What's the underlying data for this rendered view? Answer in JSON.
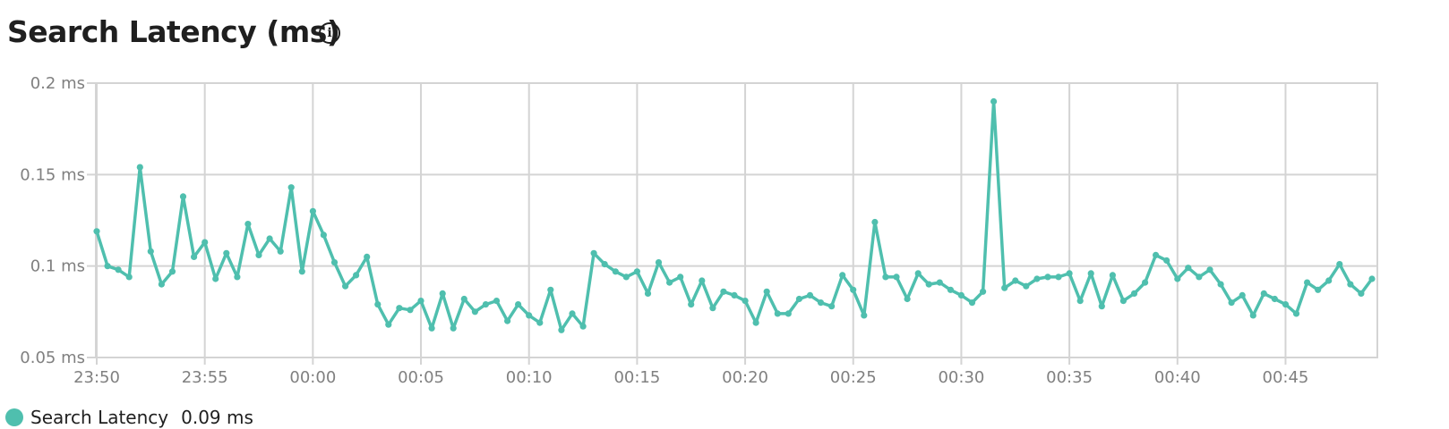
{
  "header": {
    "title": "Search Latency (ms)",
    "info_icon_glyph": "i",
    "info_icon": "info-circle-icon"
  },
  "legend": {
    "series_name": "Search Latency",
    "current_value": "0.09 ms",
    "color": "#4fbfae"
  },
  "chart_data": {
    "type": "line",
    "title": "Search Latency (ms)",
    "xlabel": "",
    "ylabel": "",
    "grid": true,
    "legend_position": "bottom-left",
    "ylim": [
      0.05,
      0.2
    ],
    "yticks": [
      "0.05 ms",
      "0.1 ms",
      "0.15 ms",
      "0.2 ms"
    ],
    "ytick_values": [
      0.05,
      0.1,
      0.15,
      0.2
    ],
    "xlim": [
      "23:50",
      "00:49"
    ],
    "xticks": [
      "23:50",
      "23:55",
      "00:00",
      "00:05",
      "00:10",
      "00:15",
      "00:20",
      "00:25",
      "00:30",
      "00:35",
      "00:40",
      "00:45"
    ],
    "x_start": "23:50",
    "x_step_seconds": 30,
    "series": [
      {
        "name": "Search Latency",
        "color": "#4fbfae",
        "values": [
          0.119,
          0.1,
          0.098,
          0.094,
          0.154,
          0.108,
          0.09,
          0.097,
          0.138,
          0.105,
          0.113,
          0.093,
          0.107,
          0.094,
          0.123,
          0.106,
          0.115,
          0.108,
          0.143,
          0.097,
          0.13,
          0.117,
          0.102,
          0.089,
          0.095,
          0.105,
          0.079,
          0.068,
          0.077,
          0.076,
          0.081,
          0.066,
          0.085,
          0.066,
          0.082,
          0.075,
          0.079,
          0.081,
          0.07,
          0.079,
          0.073,
          0.069,
          0.087,
          0.065,
          0.074,
          0.067,
          0.107,
          0.101,
          0.097,
          0.094,
          0.097,
          0.085,
          0.102,
          0.091,
          0.094,
          0.079,
          0.092,
          0.077,
          0.086,
          0.084,
          0.081,
          0.069,
          0.086,
          0.074,
          0.074,
          0.082,
          0.084,
          0.08,
          0.078,
          0.095,
          0.087,
          0.073,
          0.124,
          0.094,
          0.094,
          0.082,
          0.096,
          0.09,
          0.091,
          0.087,
          0.084,
          0.08,
          0.086,
          0.19,
          0.088,
          0.092,
          0.089,
          0.093,
          0.094,
          0.094,
          0.096,
          0.081,
          0.096,
          0.078,
          0.095,
          0.081,
          0.085,
          0.091,
          0.106,
          0.103,
          0.093,
          0.099,
          0.094,
          0.098,
          0.09,
          0.08,
          0.084,
          0.073,
          0.085,
          0.082,
          0.079,
          0.074,
          0.091,
          0.087,
          0.092,
          0.101,
          0.09,
          0.085,
          0.093
        ]
      }
    ]
  }
}
